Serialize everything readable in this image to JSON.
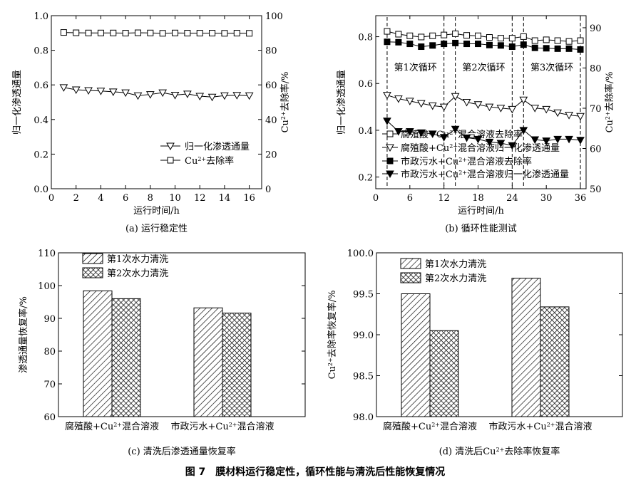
{
  "figure_caption": "图 7　膜材料运行稳定性，循环性能与清洗后性能恢复情况",
  "chart_data": [
    {
      "id": "a",
      "type": "line",
      "caption": "(a) 运行稳定性",
      "xlabel": "运行时间/h",
      "ylabel_left": "归一化渗透通量",
      "ylabel_right": "Cu2+去除率/%",
      "xlim": [
        0,
        17
      ],
      "ylim_left": [
        0,
        1.0
      ],
      "ylim_right": [
        0,
        100
      ],
      "x_ticks": [
        0,
        2,
        4,
        6,
        8,
        10,
        12,
        14,
        16
      ],
      "y_ticks_left": [
        0.0,
        0.2,
        0.4,
        0.6,
        0.8,
        1.0
      ],
      "y_ticks_left_labels": [
        "0.0",
        "0.2",
        "0.4",
        "0.6",
        "0.8",
        "1.0"
      ],
      "y_ticks_right": [
        0,
        20,
        40,
        60,
        80,
        100
      ],
      "y_ticks_right_labels": [
        "0",
        "20",
        "40",
        "60",
        "80",
        "100"
      ],
      "x": [
        1,
        2,
        3,
        4,
        5,
        6,
        7,
        8,
        9,
        10,
        11,
        12,
        13,
        14,
        15,
        16
      ],
      "series": [
        {
          "name": "归一化渗透通量",
          "axis": "left",
          "marker": "triangle-down-open",
          "values": [
            0.585,
            0.572,
            0.568,
            0.565,
            0.56,
            0.555,
            0.538,
            0.545,
            0.555,
            0.541,
            0.548,
            0.535,
            0.53,
            0.538,
            0.54,
            0.538
          ]
        },
        {
          "name": "Cu2+去除率",
          "axis": "right",
          "marker": "square-open",
          "values": [
            90.3,
            90.1,
            90.0,
            90.0,
            90.0,
            89.9,
            90.1,
            90.0,
            89.8,
            90.0,
            89.9,
            89.9,
            89.9,
            89.8,
            89.9,
            89.8
          ]
        }
      ],
      "legend": {
        "position": "right-middle",
        "entries": [
          "归一化渗透通量",
          "Cu2+去除率"
        ]
      }
    },
    {
      "id": "b",
      "type": "line",
      "caption": "(b) 循环性能测试",
      "xlabel": "运行时间/h",
      "ylabel_left": "归一化渗透通量",
      "ylabel_right": "Cu2+去除率/%",
      "xlim": [
        0,
        37
      ],
      "ylim_left": [
        0.15,
        0.89
      ],
      "ylim_right": [
        50,
        93
      ],
      "x_ticks": [
        0,
        6,
        12,
        18,
        24,
        30,
        36
      ],
      "y_ticks_left": [
        0.2,
        0.4,
        0.6,
        0.8
      ],
      "y_ticks_left_labels": [
        "0.2",
        "0.4",
        "0.6",
        "0.8"
      ],
      "y_ticks_right": [
        50,
        60,
        70,
        80,
        90
      ],
      "y_ticks_right_labels": [
        "50",
        "60",
        "70",
        "80",
        "90"
      ],
      "cycle_boundaries": [
        2,
        12,
        14,
        24,
        26,
        36
      ],
      "cycle_labels": [
        "第1次循环",
        "第2次循环",
        "第3次循环"
      ],
      "cycle_label_x": [
        7,
        19,
        31
      ],
      "x": [
        2,
        4,
        6,
        8,
        10,
        12,
        14,
        16,
        18,
        20,
        22,
        24,
        26,
        28,
        30,
        32,
        34,
        36
      ],
      "series": [
        {
          "name": "腐殖酸+Cu2+混合溶液去除率",
          "axis": "right",
          "marker": "square-open",
          "values": [
            89.1,
            88.4,
            88.0,
            87.7,
            88.0,
            88.2,
            88.5,
            88.1,
            88.0,
            87.6,
            87.4,
            87.4,
            87.8,
            86.8,
            87.0,
            86.8,
            86.6,
            86.8
          ]
        },
        {
          "name": "腐殖酸+Cu2+混合溶液归一化渗透通量",
          "axis": "left",
          "marker": "triangle-down-open",
          "values": [
            0.55,
            0.535,
            0.525,
            0.515,
            0.505,
            0.5,
            0.545,
            0.52,
            0.51,
            0.5,
            0.495,
            0.49,
            0.53,
            0.495,
            0.49,
            0.475,
            0.465,
            0.46
          ]
        },
        {
          "name": "市政污水+Cu2+混合溶液去除率",
          "axis": "right",
          "marker": "square-filled",
          "values": [
            86.5,
            86.4,
            86.0,
            85.3,
            85.6,
            86.0,
            86.2,
            86.0,
            86.0,
            85.7,
            85.6,
            85.3,
            85.8,
            85.0,
            84.9,
            84.8,
            84.8,
            84.6
          ]
        },
        {
          "name": "市政污水+Cu2+混合溶液归一化渗透通量",
          "axis": "left",
          "marker": "triangle-down-filled",
          "values": [
            0.44,
            0.395,
            0.395,
            0.39,
            0.385,
            0.37,
            0.405,
            0.368,
            0.362,
            0.35,
            0.345,
            0.335,
            0.4,
            0.36,
            0.355,
            0.362,
            0.362,
            0.358
          ]
        }
      ],
      "legend": {
        "position": "lower-middle",
        "entries": [
          "腐殖酸+Cu2+混合溶液去除率",
          "腐殖酸+Cu2+混合溶液归一化渗透通量",
          "市政污水+Cu2+混合溶液去除率",
          "市政污水+Cu2+混合溶液归一化渗透通量"
        ]
      }
    },
    {
      "id": "c",
      "type": "bar",
      "caption": "(c) 清洗后渗透通量恢复率",
      "xlabel": "",
      "ylabel": "渗透通量恢复率/%",
      "ylim": [
        60,
        110
      ],
      "y_ticks": [
        60,
        70,
        80,
        90,
        100,
        110
      ],
      "y_ticks_labels": [
        "60",
        "70",
        "80",
        "90",
        "100",
        "110"
      ],
      "categories": [
        "腐殖酸+Cu2+混合溶液",
        "市政污水+Cu2+混合溶液"
      ],
      "series": [
        {
          "name": "第1次水力清洗",
          "pattern": "hatch-diagonal",
          "values": [
            98.4,
            93.2
          ]
        },
        {
          "name": "第2次水力清洗",
          "pattern": "crosshatch",
          "values": [
            96.0,
            91.6
          ]
        }
      ],
      "legend": {
        "position": "top-left",
        "entries": [
          "第1次水力清洗",
          "第2次水力清洗"
        ]
      }
    },
    {
      "id": "d",
      "type": "bar",
      "caption": "(d) 清洗后Cu2+去除率恢复率",
      "xlabel": "",
      "ylabel": "Cu2+去除率恢复率/%",
      "ylim": [
        98.0,
        100.0
      ],
      "y_ticks": [
        98.0,
        98.5,
        99.0,
        99.5,
        100.0
      ],
      "y_ticks_labels": [
        "98.0",
        "98.5",
        "99.0",
        "99.5",
        "100.0"
      ],
      "categories": [
        "腐殖酸+Cu2+混合溶液",
        "市政污水+Cu2+混合溶液"
      ],
      "series": [
        {
          "name": "第1次水力清洗",
          "pattern": "hatch-diagonal",
          "values": [
            99.5,
            99.69
          ]
        },
        {
          "name": "第2次水力清洗",
          "pattern": "crosshatch",
          "values": [
            99.05,
            99.34
          ]
        }
      ],
      "legend": {
        "position": "top-left",
        "entries": [
          "第1次水力清洗",
          "第2次水力清洗"
        ]
      }
    }
  ]
}
